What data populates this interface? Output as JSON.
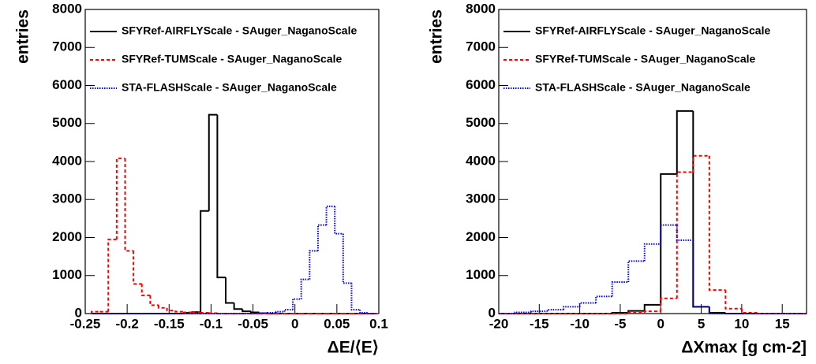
{
  "chart_data": [
    {
      "type": "histogram",
      "x_label": "ΔE/⟨E⟩",
      "y_label": "entries",
      "xlim": [
        -0.25,
        0.1
      ],
      "xticks": [
        -0.25,
        -0.2,
        -0.15,
        -0.1,
        -0.05,
        0,
        0.05,
        0.1
      ],
      "ylim": [
        0,
        8000
      ],
      "yticks": [
        0,
        1000,
        2000,
        3000,
        4000,
        5000,
        6000,
        7000,
        8000
      ],
      "legend": "top-left",
      "bins": [
        -0.2425,
        -0.2325,
        -0.2225,
        -0.2125,
        -0.2025,
        -0.1925,
        -0.1825,
        -0.1725,
        -0.1625,
        -0.1525,
        -0.1425,
        -0.1325,
        -0.1225,
        -0.1125,
        -0.1025,
        -0.0925,
        -0.0825,
        -0.0725,
        -0.0625,
        -0.0525,
        -0.0425,
        -0.0325,
        -0.0225,
        -0.0125,
        -0.0025,
        0.0075,
        0.0175,
        0.0275,
        0.0375,
        0.0475,
        0.0575,
        0.0675,
        0.0775,
        0.0875,
        0.0975
      ],
      "series": [
        {
          "name": "SFYRef-AIRFLYScale - SAuger_NaganoScale",
          "color": "#000000",
          "dash": "solid",
          "values": [
            0,
            0,
            0,
            0,
            0,
            0,
            0,
            0,
            0,
            0,
            0,
            20,
            40,
            2700,
            5230,
            950,
            280,
            120,
            60,
            30,
            10,
            0,
            0,
            0,
            0,
            0,
            0,
            0,
            0,
            0,
            0,
            0,
            0,
            0
          ]
        },
        {
          "name": "SFYRef-TUMScale - SAuger_NaganoScale",
          "color": "#ff0000",
          "dash": "dashed",
          "values": [
            50,
            50,
            1950,
            4080,
            1650,
            780,
            480,
            220,
            150,
            80,
            50,
            30,
            30,
            20,
            10,
            0,
            0,
            0,
            0,
            0,
            0,
            0,
            0,
            0,
            0,
            0,
            0,
            0,
            0,
            0,
            0,
            0,
            0,
            0
          ]
        },
        {
          "name": "STA-FLASHScale - SAuger_NaganoScale",
          "color": "#0000ff",
          "dash": "dotted",
          "values": [
            0,
            0,
            0,
            0,
            0,
            0,
            0,
            0,
            0,
            0,
            0,
            0,
            0,
            0,
            0,
            0,
            0,
            0,
            0,
            0,
            10,
            20,
            50,
            100,
            380,
            900,
            1650,
            2330,
            2820,
            2100,
            800,
            100,
            20,
            0
          ]
        }
      ]
    },
    {
      "type": "histogram",
      "x_label": "ΔXmax [g cm-2]",
      "y_label": "entries",
      "xlim": [
        -20,
        18
      ],
      "xticks": [
        -20,
        -15,
        -10,
        -5,
        0,
        5,
        10,
        15
      ],
      "ylim": [
        0,
        8000
      ],
      "yticks": [
        0,
        1000,
        2000,
        3000,
        4000,
        5000,
        6000,
        7000,
        8000
      ],
      "legend": "top-left",
      "bins": [
        -20,
        -18,
        -16,
        -14,
        -12,
        -10,
        -8,
        -6,
        -4,
        -2,
        0,
        2,
        4,
        6,
        8,
        10,
        12,
        14,
        16,
        18
      ],
      "series": [
        {
          "name": "SFYRef-AIRFLYScale - SAuger_NaganoScale",
          "color": "#000000",
          "dash": "solid",
          "values": [
            0,
            0,
            0,
            0,
            0,
            0,
            0,
            20,
            70,
            230,
            3670,
            5330,
            180,
            20,
            0,
            0,
            0,
            0,
            0
          ]
        },
        {
          "name": "SFYRef-TUMScale - SAuger_NaganoScale",
          "color": "#ff0000",
          "dash": "dashed",
          "values": [
            0,
            0,
            0,
            0,
            0,
            0,
            0,
            0,
            20,
            60,
            400,
            3720,
            4150,
            620,
            130,
            20,
            0,
            0,
            0
          ]
        },
        {
          "name": "STA-FLASHScale - SAuger_NaganoScale",
          "color": "#0000ff",
          "dash": "dotted",
          "values": [
            0,
            30,
            60,
            100,
            180,
            280,
            450,
            830,
            1380,
            1830,
            2330,
            1930,
            180,
            0,
            0,
            0,
            0,
            0,
            0
          ]
        }
      ]
    }
  ]
}
